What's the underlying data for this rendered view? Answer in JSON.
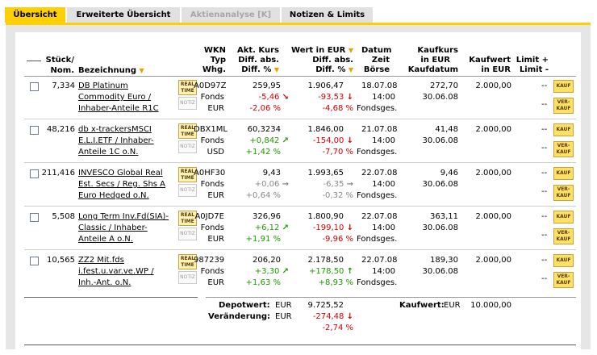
{
  "tabs": [
    {
      "label": "Übersicht",
      "state": "active"
    },
    {
      "label": "Erweiterte Übersicht",
      "state": "normal"
    },
    {
      "label": "Aktienanalyse [K]",
      "state": "disabled"
    },
    {
      "label": "Notizen & Limits",
      "state": "normal"
    }
  ],
  "header": {
    "stueck_nom": [
      "Stück/",
      "Nom."
    ],
    "bezeichnung": "Bezeichnung",
    "wkn": [
      "WKN",
      "Typ",
      "Whg."
    ],
    "kurs": [
      "Akt. Kurs",
      "Diff. abs.",
      "Diff. %"
    ],
    "wert": [
      "Wert in EUR",
      "Diff. abs.",
      "Diff. %"
    ],
    "datum": [
      "Datum",
      "Zeit",
      "Börse"
    ],
    "kaufkurs": [
      "Kaufkurs",
      "in EUR",
      "Kaufdatum"
    ],
    "kaufwert": [
      "Kaufwert",
      "in EUR"
    ],
    "limit": [
      "Limit +",
      "Limit -"
    ]
  },
  "labels": {
    "realtime": [
      "REAL",
      "TIME"
    ],
    "notiz": "NOTIZ",
    "kauf": "KAUF",
    "verkauf": [
      "VER-",
      "KAUF"
    ],
    "limit_plus": "--",
    "limit_minus": "--"
  },
  "rows": [
    {
      "stueck": "7,334",
      "name": [
        "DB Platinum",
        "Commodity Euro /",
        "Inhaber-Anteile R1C"
      ],
      "wkn": "A0D97Z",
      "typ": "Fonds",
      "whg": "EUR",
      "kurs": "259,95",
      "kurs_abs": "-5,46",
      "kurs_abs_arrow": "↘",
      "kurs_pct": "-2,06 %",
      "kurs_trend": "neg",
      "wert": "1.906,47",
      "wert_abs": "-93,53",
      "wert_arrow": "↓",
      "wert_pct": "-4,68 %",
      "wert_trend": "neg",
      "datum": "18.07.08",
      "zeit": "14:00",
      "boerse": "Fondsges.",
      "kaufkurs": "272,70",
      "kaufdatum": "30.06.08",
      "kaufwert": "2.000,00"
    },
    {
      "stueck": "48,216",
      "name": [
        "db x-trackersMSCI",
        "E.L.I.ETF / Inhaber-",
        "Anteile 1C o.N."
      ],
      "wkn": "DBX1ML",
      "typ": "Fonds",
      "whg": "USD",
      "kurs": "60,3234",
      "kurs_abs": "+0,842",
      "kurs_abs_arrow": "↗",
      "kurs_pct": "+1,42 %",
      "kurs_trend": "pos",
      "wert": "1.846,00",
      "wert_abs": "-154,00",
      "wert_arrow": "↓",
      "wert_pct": "-7,70 %",
      "wert_trend": "neg",
      "datum": "21.07.08",
      "zeit": "14:00",
      "boerse": "Fondsges.",
      "kaufkurs": "41,48",
      "kaufdatum": "30.06.08",
      "kaufwert": "2.000,00"
    },
    {
      "stueck": "211,416",
      "name": [
        "INVESCO Global Real",
        "Est. Secs / Reg. Shs A",
        "Euro Hedged o.N."
      ],
      "wkn": "A0HF30",
      "typ": "Fonds",
      "whg": "EUR",
      "kurs": "9,43",
      "kurs_abs": "+0,06",
      "kurs_abs_arrow": "→",
      "kurs_pct": "+0,64 %",
      "kurs_trend": "gray",
      "wert": "1.993,65",
      "wert_abs": "-6,35",
      "wert_arrow": "→",
      "wert_pct": "-0,32 %",
      "wert_trend": "gray",
      "datum": "22.07.08",
      "zeit": "14:00",
      "boerse": "Fondsges.",
      "kaufkurs": "9,46",
      "kaufdatum": "30.06.08",
      "kaufwert": "2.000,00"
    },
    {
      "stueck": "5,508",
      "name": [
        "Long Term Inv.Fd(SIA)-",
        "Classic / Inhaber-",
        "Anteile A o.N."
      ],
      "wkn": "A0JD7E",
      "typ": "Fonds",
      "whg": "EUR",
      "kurs": "326,96",
      "kurs_abs": "+6,12",
      "kurs_abs_arrow": "↗",
      "kurs_pct": "+1,91 %",
      "kurs_trend": "pos",
      "wert": "1.800,90",
      "wert_abs": "-199,10",
      "wert_arrow": "↓",
      "wert_pct": "-9,96 %",
      "wert_trend": "neg",
      "datum": "22.07.08",
      "zeit": "14:00",
      "boerse": "Fondsges.",
      "kaufkurs": "363,11",
      "kaufdatum": "30.06.08",
      "kaufwert": "2.000,00"
    },
    {
      "stueck": "10,565",
      "name": [
        "ZZ2 Mit.fds",
        "i.fest.u.var.ve.WP /",
        "Inh.-Ant. o.N."
      ],
      "wkn": "987239",
      "typ": "Fonds",
      "whg": "EUR",
      "kurs": "206,20",
      "kurs_abs": "+3,30",
      "kurs_abs_arrow": "↗",
      "kurs_pct": "+1,63 %",
      "kurs_trend": "pos",
      "wert": "2.178,50",
      "wert_abs": "+178,50",
      "wert_arrow": "↑",
      "wert_pct": "+8,93 %",
      "wert_trend": "pos",
      "datum": "22.07.08",
      "zeit": "14:00",
      "boerse": "Fondsges.",
      "kaufkurs": "189,30",
      "kaufdatum": "30.06.08",
      "kaufwert": "2.000,00"
    }
  ],
  "summary": {
    "depotwert_label": "Depotwert:",
    "depotwert_cur": "EUR",
    "depotwert": "9.725,52",
    "veraenderung_label": "Veränderung:",
    "veraenderung_cur": "EUR",
    "veraenderung_abs": "-274,48",
    "veraenderung_arrow": "↓",
    "veraenderung_pct": "-2,74 %",
    "kaufwert_label": "Kaufwert:",
    "kaufwert_cur": "EUR",
    "kaufwert": "10.000,00"
  }
}
